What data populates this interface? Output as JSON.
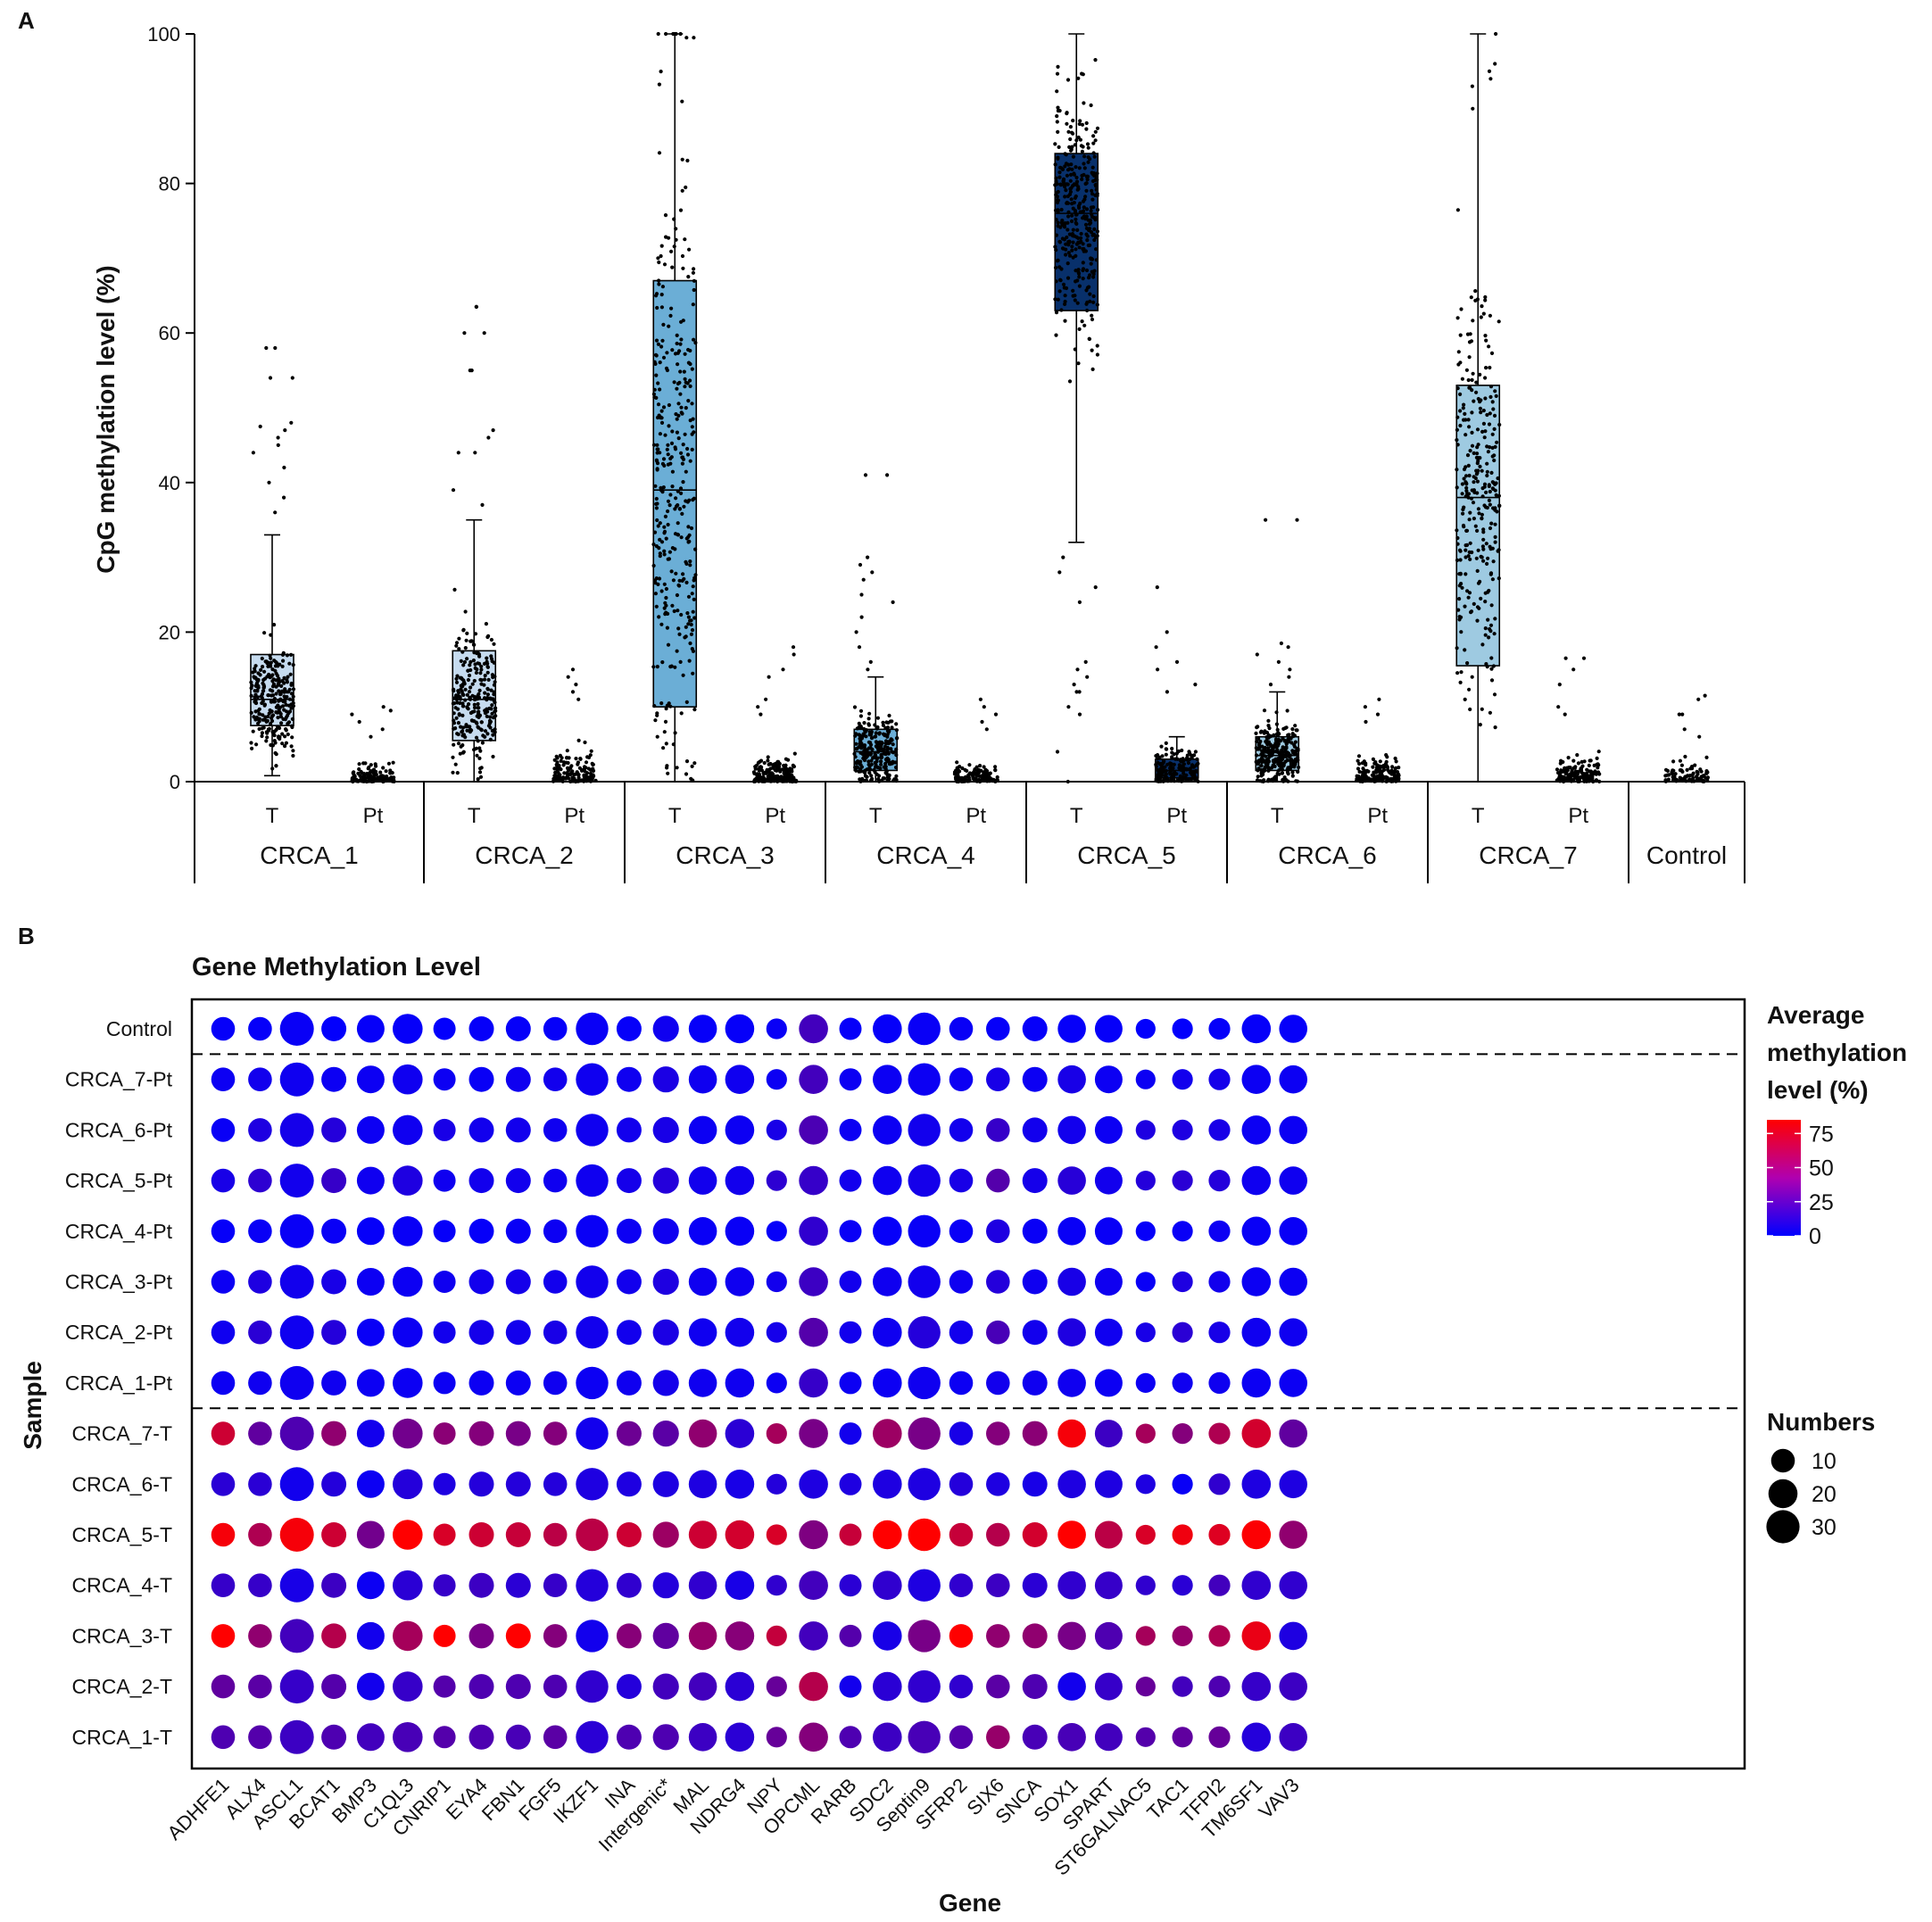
{
  "panel_a": {
    "letter": "A",
    "ylabel": "CpG methylation level (%)",
    "ylim": [
      0,
      100
    ],
    "yticks": [
      0,
      20,
      40,
      60,
      80,
      100
    ],
    "groups": [
      {
        "name": "CRCA_1",
        "subs": [
          {
            "label": "T",
            "box": {
              "q1": 7.5,
              "median": 11,
              "q3": 17,
              "whisker_low": 0.8,
              "whisker_high": 33
            },
            "fill": "#c6dbef",
            "jitter": {
              "n": 260,
              "center": 11,
              "spread": 6,
              "max": 33
            },
            "outliers": [
              36,
              38,
              40,
              42,
              44,
              45,
              46,
              47,
              47.5,
              48,
              54,
              54,
              58,
              58
            ]
          },
          {
            "label": "Pt",
            "box": null,
            "fill": null,
            "jitter": {
              "n": 130,
              "center": 0.4,
              "spread": 1.4,
              "max": 5
            },
            "outliers": [
              6,
              7,
              8,
              9,
              9.5,
              10
            ]
          }
        ]
      },
      {
        "name": "CRCA_2",
        "subs": [
          {
            "label": "T",
            "box": {
              "q1": 5.5,
              "median": 11,
              "q3": 17.5,
              "whisker_low": 0,
              "whisker_high": 35
            },
            "fill": "#c6dbef",
            "jitter": {
              "n": 260,
              "center": 11,
              "spread": 7,
              "max": 35
            },
            "outliers": [
              37,
              39,
              44,
              44,
              46,
              47,
              55,
              55,
              60,
              60,
              63.5,
              63.5
            ]
          },
          {
            "label": "Pt",
            "box": null,
            "fill": null,
            "jitter": {
              "n": 160,
              "center": 1,
              "spread": 2.5,
              "max": 10
            },
            "outliers": [
              11,
              12,
              13,
              14,
              15
            ]
          }
        ]
      },
      {
        "name": "CRCA_3",
        "subs": [
          {
            "label": "T",
            "box": {
              "q1": 10,
              "median": 39,
              "q3": 67,
              "whisker_low": 0,
              "whisker_high": 100
            },
            "fill": "#6baed6",
            "jitter": {
              "n": 340,
              "center": 39,
              "spread": 30,
              "max": 100
            },
            "outliers": [
              100,
              100,
              100,
              100,
              100,
              100,
              99.5,
              99.5
            ]
          },
          {
            "label": "Pt",
            "box": null,
            "fill": null,
            "jitter": {
              "n": 200,
              "center": 0.8,
              "spread": 2,
              "max": 8
            },
            "outliers": [
              9,
              10,
              11,
              14,
              15,
              17,
              18
            ]
          }
        ]
      },
      {
        "name": "CRCA_4",
        "subs": [
          {
            "label": "T",
            "box": {
              "q1": 1.5,
              "median": 4,
              "q3": 7,
              "whisker_low": 0,
              "whisker_high": 14
            },
            "fill": "#6baed6",
            "jitter": {
              "n": 260,
              "center": 4,
              "spread": 4,
              "max": 14
            },
            "outliers": [
              15,
              16,
              18,
              20,
              22,
              24,
              25,
              27,
              28,
              29,
              30,
              41,
              41
            ]
          },
          {
            "label": "Pt",
            "box": null,
            "fill": null,
            "jitter": {
              "n": 140,
              "center": 0.5,
              "spread": 1.5,
              "max": 6
            },
            "outliers": [
              7,
              8,
              9,
              10,
              11
            ]
          }
        ]
      },
      {
        "name": "CRCA_5",
        "subs": [
          {
            "label": "T",
            "box": {
              "q1": 63,
              "median": 76,
              "q3": 84,
              "whisker_low": 32,
              "whisker_high": 100
            },
            "fill": "#08306b",
            "jitter": {
              "n": 360,
              "center": 76,
              "spread": 13,
              "max": 100
            },
            "outliers": [
              0,
              4,
              9,
              10,
              12,
              12,
              13,
              14,
              15,
              16,
              24,
              26,
              28,
              30
            ]
          },
          {
            "label": "Pt",
            "box": {
              "q1": 0.5,
              "median": 1.5,
              "q3": 3,
              "whisker_low": 0,
              "whisker_high": 6
            },
            "fill": "#08306b",
            "jitter": {
              "n": 170,
              "center": 1.5,
              "spread": 2.5,
              "max": 11
            },
            "outliers": [
              12,
              13,
              15,
              16,
              18,
              20,
              26
            ]
          }
        ]
      },
      {
        "name": "CRCA_6",
        "subs": [
          {
            "label": "T",
            "box": {
              "q1": 1.5,
              "median": 3.5,
              "q3": 6,
              "whisker_low": 0,
              "whisker_high": 12
            },
            "fill": "#9ecae1",
            "jitter": {
              "n": 300,
              "center": 3.5,
              "spread": 3.5,
              "max": 12
            },
            "outliers": [
              13,
              14,
              15,
              16,
              17,
              18,
              18.5,
              35,
              35
            ]
          },
          {
            "label": "Pt",
            "box": null,
            "fill": null,
            "jitter": {
              "n": 160,
              "center": 0.8,
              "spread": 1.8,
              "max": 7
            },
            "outliers": [
              8,
              9,
              10,
              11
            ]
          }
        ]
      },
      {
        "name": "CRCA_7",
        "subs": [
          {
            "label": "T",
            "box": {
              "q1": 15.5,
              "median": 38,
              "q3": 53,
              "whisker_low": 0,
              "whisker_high": 100
            },
            "fill": "#9ecae1",
            "jitter": {
              "n": 300,
              "center": 38,
              "spread": 22,
              "max": 100
            },
            "outliers": [
              100,
              96,
              95,
              94,
              93,
              90
            ]
          },
          {
            "label": "Pt",
            "box": null,
            "fill": null,
            "jitter": {
              "n": 150,
              "center": 0.8,
              "spread": 2,
              "max": 8
            },
            "outliers": [
              9,
              10,
              13,
              15,
              16.5,
              16.5
            ]
          }
        ]
      },
      {
        "name": "Control",
        "subs": [
          {
            "label": "",
            "box": null,
            "fill": null,
            "jitter": {
              "n": 90,
              "center": 0.5,
              "spread": 1.5,
              "max": 5
            },
            "outliers": [
              6,
              7,
              9,
              9,
              11,
              11.5
            ]
          }
        ]
      }
    ]
  },
  "panel_b": {
    "letter": "B",
    "title": "Gene Methylation Level",
    "xlabel": "Gene",
    "ylabel": "Sample",
    "genes": [
      "ADHFE1",
      "ALX4",
      "ASCL1",
      "BCAT1",
      "BMP3",
      "C1QL3",
      "CNRIP1",
      "EYA4",
      "FBN1",
      "FGF5",
      "IKZF1",
      "INA",
      "Intergenic*",
      "MAL",
      "NDRG4",
      "NPY",
      "OPCML",
      "RARB",
      "SDC2",
      "Septin9",
      "SFRP2",
      "SIX6",
      "SNCA",
      "SOX1",
      "SPART",
      "ST6GALNAC5",
      "TAC1",
      "TFPI2",
      "TM6SF1",
      "VAV3"
    ],
    "samples": [
      "Control",
      "CRCA_7-Pt",
      "CRCA_6-Pt",
      "CRCA_5-Pt",
      "CRCA_4-Pt",
      "CRCA_3-Pt",
      "CRCA_2-Pt",
      "CRCA_1-Pt",
      "CRCA_7-T",
      "CRCA_6-T",
      "CRCA_5-T",
      "CRCA_4-T",
      "CRCA_3-T",
      "CRCA_2-T",
      "CRCA_1-T"
    ],
    "numbers": [
      10,
      10,
      32,
      12,
      17,
      22,
      8,
      12,
      12,
      10,
      28,
      12,
      14,
      18,
      20,
      6,
      20,
      8,
      20,
      28,
      10,
      10,
      12,
      18,
      17,
      5,
      6,
      7,
      20,
      18
    ],
    "methylation": [
      [
        2,
        2,
        3,
        1,
        2,
        2,
        1,
        2,
        2,
        2,
        3,
        2,
        5,
        2,
        2,
        3,
        22,
        2,
        2,
        3,
        3,
        2,
        2,
        2,
        2,
        1,
        1,
        2,
        2,
        2
      ],
      [
        4,
        6,
        5,
        4,
        4,
        5,
        4,
        3,
        5,
        6,
        5,
        5,
        9,
        5,
        5,
        4,
        22,
        4,
        4,
        4,
        4,
        8,
        4,
        8,
        4,
        4,
        6,
        7,
        4,
        4
      ],
      [
        3,
        10,
        7,
        12,
        4,
        5,
        8,
        6,
        6,
        5,
        5,
        6,
        8,
        4,
        4,
        8,
        25,
        4,
        4,
        6,
        6,
        18,
        6,
        6,
        4,
        10,
        10,
        8,
        4,
        4
      ],
      [
        8,
        15,
        6,
        18,
        5,
        10,
        5,
        6,
        6,
        5,
        5,
        7,
        12,
        6,
        6,
        15,
        18,
        6,
        5,
        7,
        8,
        28,
        7,
        13,
        6,
        12,
        14,
        12,
        5,
        5
      ],
      [
        2,
        3,
        3,
        3,
        2,
        3,
        2,
        2,
        3,
        4,
        3,
        4,
        5,
        3,
        3,
        2,
        16,
        3,
        2,
        3,
        3,
        10,
        3,
        3,
        3,
        2,
        3,
        4,
        3,
        3
      ],
      [
        4,
        10,
        6,
        8,
        4,
        4,
        5,
        6,
        7,
        6,
        6,
        6,
        10,
        5,
        5,
        6,
        20,
        6,
        5,
        6,
        5,
        12,
        5,
        8,
        5,
        3,
        10,
        6,
        4,
        4
      ],
      [
        5,
        14,
        5,
        12,
        3,
        4,
        6,
        7,
        6,
        8,
        6,
        6,
        9,
        5,
        6,
        7,
        28,
        6,
        5,
        12,
        6,
        24,
        6,
        10,
        5,
        8,
        14,
        8,
        5,
        5
      ],
      [
        4,
        5,
        5,
        5,
        4,
        4,
        4,
        4,
        4,
        5,
        4,
        5,
        7,
        5,
        5,
        4,
        18,
        4,
        4,
        5,
        4,
        6,
        5,
        5,
        4,
        4,
        5,
        5,
        4,
        4
      ],
      [
        68,
        32,
        26,
        48,
        6,
        38,
        46,
        44,
        40,
        44,
        6,
        36,
        30,
        48,
        14,
        55,
        40,
        6,
        52,
        40,
        8,
        44,
        46,
        82,
        20,
        55,
        44,
        58,
        70,
        32
      ],
      [
        14,
        14,
        6,
        12,
        4,
        12,
        10,
        12,
        12,
        12,
        10,
        10,
        10,
        10,
        8,
        12,
        10,
        10,
        10,
        10,
        12,
        10,
        8,
        10,
        10,
        10,
        3,
        16,
        10,
        10
      ],
      [
        82,
        58,
        82,
        68,
        38,
        85,
        72,
        68,
        66,
        62,
        62,
        68,
        52,
        68,
        70,
        72,
        42,
        66,
        88,
        85,
        66,
        60,
        70,
        90,
        62,
        72,
        80,
        74,
        84,
        48
      ],
      [
        18,
        18,
        8,
        20,
        4,
        14,
        18,
        20,
        14,
        18,
        12,
        16,
        12,
        16,
        8,
        16,
        22,
        14,
        16,
        10,
        16,
        20,
        14,
        16,
        18,
        16,
        14,
        22,
        16,
        16
      ],
      [
        92,
        48,
        22,
        60,
        6,
        55,
        88,
        40,
        92,
        44,
        6,
        45,
        32,
        50,
        45,
        65,
        22,
        28,
        8,
        40,
        90,
        48,
        48,
        40,
        26,
        55,
        50,
        58,
        78,
        10
      ],
      [
        32,
        30,
        18,
        28,
        6,
        18,
        28,
        26,
        26,
        26,
        16,
        12,
        22,
        22,
        14,
        34,
        60,
        6,
        14,
        16,
        16,
        30,
        26,
        6,
        18,
        34,
        22,
        26,
        18,
        20
      ],
      [
        26,
        28,
        20,
        26,
        22,
        24,
        28,
        26,
        24,
        30,
        14,
        26,
        26,
        20,
        14,
        34,
        44,
        26,
        20,
        24,
        28,
        50,
        24,
        24,
        22,
        28,
        32,
        34,
        12,
        20
      ]
    ],
    "color_legend": {
      "title_lines": [
        "Average",
        "methylation",
        "level (%)"
      ],
      "ticks": [
        75,
        50,
        25,
        0
      ],
      "range": [
        0,
        85
      ],
      "colors": {
        "low": "#0000ff",
        "high": "#ff0000"
      }
    },
    "size_legend": {
      "title": "Numbers",
      "values": [
        10,
        20,
        30
      ]
    }
  }
}
